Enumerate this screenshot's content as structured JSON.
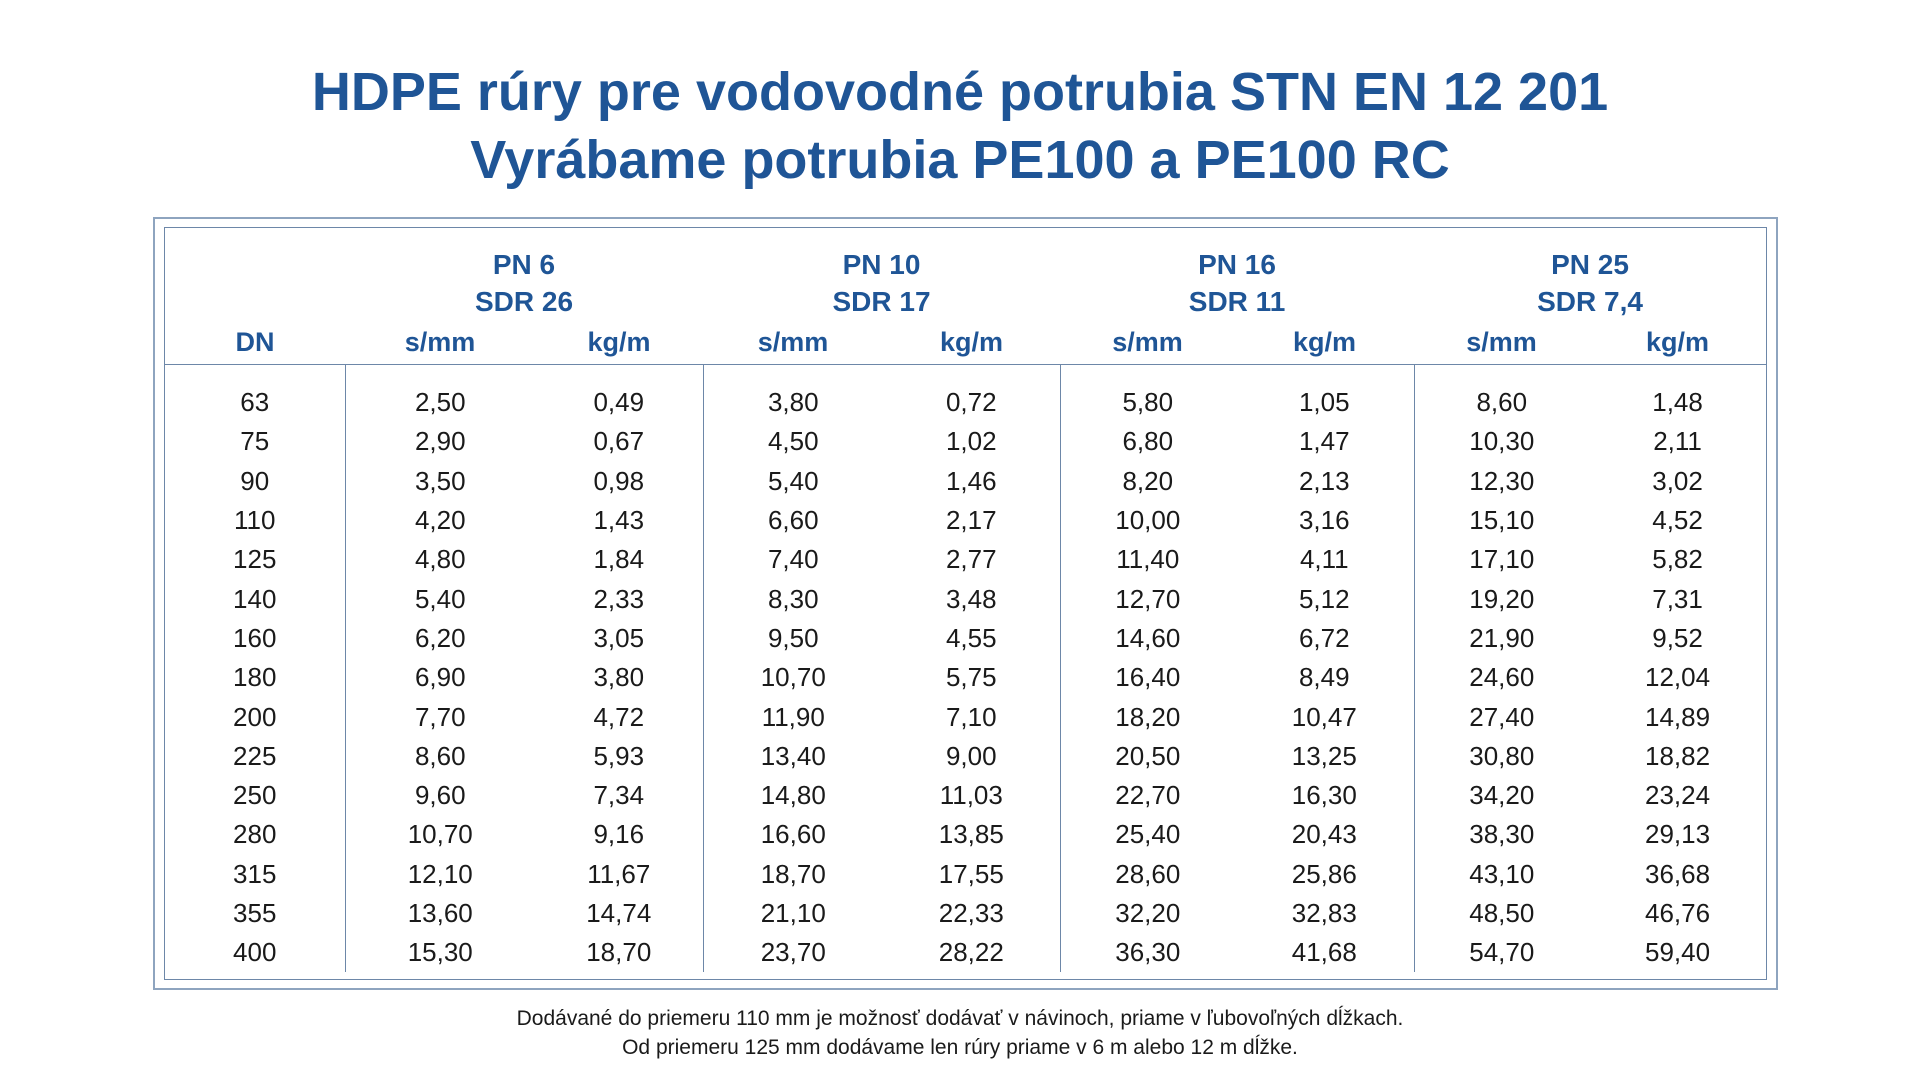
{
  "title": {
    "line1": "HDPE rúry pre vodovodné potrubia STN EN 12 201",
    "line2": "Vyrábame potrubia PE100 a PE100 RC"
  },
  "table": {
    "dn_header": "DN",
    "groups": [
      {
        "pn": "PN 6",
        "sdr": "SDR 26",
        "s_label": "s/mm",
        "kg_label": "kg/m"
      },
      {
        "pn": "PN 10",
        "sdr": "SDR 17",
        "s_label": "s/mm",
        "kg_label": "kg/m"
      },
      {
        "pn": "PN 16",
        "sdr": "SDR 11",
        "s_label": "s/mm",
        "kg_label": "kg/m"
      },
      {
        "pn": "PN 25",
        "sdr": "SDR 7,4",
        "s_label": "s/mm",
        "kg_label": "kg/m"
      }
    ],
    "rows": [
      [
        "63",
        "2,50",
        "0,49",
        "3,80",
        "0,72",
        "5,80",
        "1,05",
        "8,60",
        "1,48"
      ],
      [
        "75",
        "2,90",
        "0,67",
        "4,50",
        "1,02",
        "6,80",
        "1,47",
        "10,30",
        "2,11"
      ],
      [
        "90",
        "3,50",
        "0,98",
        "5,40",
        "1,46",
        "8,20",
        "2,13",
        "12,30",
        "3,02"
      ],
      [
        "110",
        "4,20",
        "1,43",
        "6,60",
        "2,17",
        "10,00",
        "3,16",
        "15,10",
        "4,52"
      ],
      [
        "125",
        "4,80",
        "1,84",
        "7,40",
        "2,77",
        "11,40",
        "4,11",
        "17,10",
        "5,82"
      ],
      [
        "140",
        "5,40",
        "2,33",
        "8,30",
        "3,48",
        "12,70",
        "5,12",
        "19,20",
        "7,31"
      ],
      [
        "160",
        "6,20",
        "3,05",
        "9,50",
        "4,55",
        "14,60",
        "6,72",
        "21,90",
        "9,52"
      ],
      [
        "180",
        "6,90",
        "3,80",
        "10,70",
        "5,75",
        "16,40",
        "8,49",
        "24,60",
        "12,04"
      ],
      [
        "200",
        "7,70",
        "4,72",
        "11,90",
        "7,10",
        "18,20",
        "10,47",
        "27,40",
        "14,89"
      ],
      [
        "225",
        "8,60",
        "5,93",
        "13,40",
        "9,00",
        "20,50",
        "13,25",
        "30,80",
        "18,82"
      ],
      [
        "250",
        "9,60",
        "7,34",
        "14,80",
        "11,03",
        "22,70",
        "16,30",
        "34,20",
        "23,24"
      ],
      [
        "280",
        "10,70",
        "9,16",
        "16,60",
        "13,85",
        "25,40",
        "20,43",
        "38,30",
        "29,13"
      ],
      [
        "315",
        "12,10",
        "11,67",
        "18,70",
        "17,55",
        "28,60",
        "25,86",
        "43,10",
        "36,68"
      ],
      [
        "355",
        "13,60",
        "14,74",
        "21,10",
        "22,33",
        "32,20",
        "32,83",
        "48,50",
        "46,76"
      ],
      [
        "400",
        "15,30",
        "18,70",
        "23,70",
        "28,22",
        "36,30",
        "41,68",
        "54,70",
        "59,40"
      ]
    ]
  },
  "footer": {
    "line1": "Dodávané do priemeru 110 mm je možnosť dodávať v návinoch, priame v ľubovoľných dĺžkach.",
    "line2": "Od priemeru 125 mm dodávame len rúry priame v 6 m alebo 12 m dĺžke."
  },
  "colors": {
    "accent_blue": "#1f5596",
    "border": "#6d87a8"
  }
}
